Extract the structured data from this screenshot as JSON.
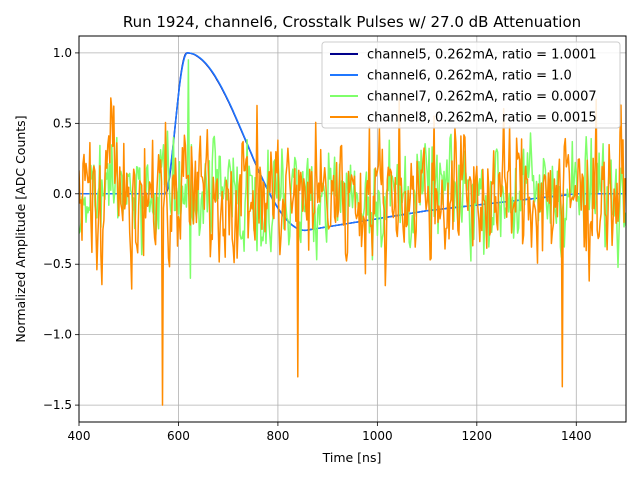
{
  "chart_data": {
    "type": "line",
    "title": "Run 1924, channel6, Crosstalk Pulses w/ 27.0 dB Attenuation",
    "xlabel": "Time [ns]",
    "ylabel": "Normalized Amplitude [ADC Counts]",
    "xlim": [
      400,
      1500
    ],
    "ylim": [
      -1.62,
      1.12
    ],
    "xticks": [
      400,
      600,
      800,
      1000,
      1200,
      1400
    ],
    "xtick_labels": [
      "400",
      "600",
      "800",
      "1000",
      "1200",
      "1400"
    ],
    "yticks": [
      -1.5,
      -1.0,
      -0.5,
      0.0,
      0.5,
      1.0
    ],
    "ytick_labels": [
      "−1.5",
      "−1.0",
      "−0.5",
      "0.0",
      "0.5",
      "1.0"
    ],
    "grid": true,
    "legend_position": "top-right",
    "series": [
      {
        "name": "channel5, 0.262mA, ratio = 1.0001",
        "color": "#00008b",
        "kind": "pulse",
        "pulse": {
          "t0": 575,
          "rise": 42,
          "fall_to": 855,
          "baseline": 0.0,
          "undershoot": -0.26,
          "peak": 1.0,
          "recover_end": 1100
        }
      },
      {
        "name": "channel6, 0.262mA, ratio = 1.0",
        "color": "#1f77ff",
        "kind": "pulse",
        "pulse": {
          "t0": 574,
          "rise": 44,
          "fall_to": 855,
          "baseline": 0.0,
          "undershoot": -0.26,
          "peak": 1.0,
          "recover_end": 1100
        }
      },
      {
        "name": "channel7, 0.262mA, ratio = 0.0007",
        "color": "#7fff6a",
        "kind": "noise",
        "noise": {
          "amplitude": 0.34,
          "spikes": [
            [
              620,
              0.95
            ],
            [
              625,
              -0.6
            ],
            [
              590,
              0.4
            ]
          ],
          "seed": 7
        }
      },
      {
        "name": "channel8, 0.262mA, ratio = 0.0015",
        "color": "#ff8c00",
        "kind": "noise",
        "noise": {
          "amplitude": 0.42,
          "spikes": [
            [
              568,
              -1.5
            ],
            [
              1372,
              -1.37
            ],
            [
              840,
              -1.3
            ],
            [
              465,
              0.68
            ],
            [
              1045,
              0.68
            ],
            [
              1440,
              0.67
            ]
          ],
          "seed": 8
        }
      }
    ],
    "sample_step_ns": 2
  }
}
